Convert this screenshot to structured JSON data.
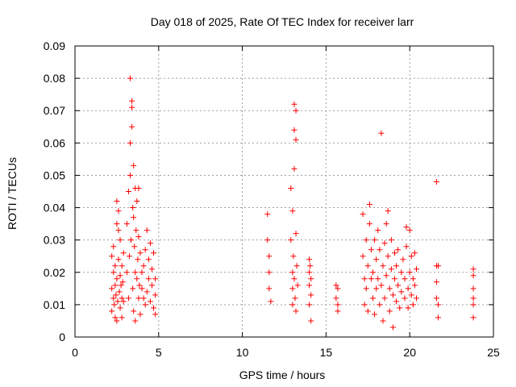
{
  "chart_data": {
    "type": "scatter",
    "title": "Day 018 of 2025, Rate Of TEC Index for receiver larr",
    "xlabel": "GPS time / hours",
    "ylabel": "ROTI / TECUs",
    "xlim": [
      0,
      25
    ],
    "ylim": [
      0,
      0.09
    ],
    "x_ticks": [
      0,
      5,
      10,
      15,
      20,
      25
    ],
    "x_tick_labels": [
      "0",
      "5",
      "10",
      "15",
      "20",
      "25"
    ],
    "y_ticks": [
      0,
      0.01,
      0.02,
      0.03,
      0.04,
      0.05,
      0.06,
      0.07,
      0.08,
      0.09
    ],
    "y_tick_labels": [
      "0",
      "0.01",
      "0.02",
      "0.03",
      "0.04",
      "0.05",
      "0.06",
      "0.07",
      "0.08",
      "0.09"
    ],
    "grid": true,
    "marker": "plus",
    "color": "#ff0000",
    "series": [
      {
        "points": [
          [
            2.2,
            0.015
          ],
          [
            2.2,
            0.025
          ],
          [
            2.2,
            0.008
          ],
          [
            2.3,
            0.012
          ],
          [
            2.3,
            0.02
          ],
          [
            2.3,
            0.028
          ],
          [
            2.35,
            0.01
          ],
          [
            2.4,
            0.016
          ],
          [
            2.4,
            0.022
          ],
          [
            2.4,
            0.006
          ],
          [
            2.45,
            0.013
          ],
          [
            2.5,
            0.018
          ],
          [
            2.5,
            0.035
          ],
          [
            2.5,
            0.042
          ],
          [
            2.5,
            0.005
          ],
          [
            2.55,
            0.011
          ],
          [
            2.6,
            0.024
          ],
          [
            2.6,
            0.033
          ],
          [
            2.6,
            0.039
          ],
          [
            2.65,
            0.014
          ],
          [
            2.7,
            0.009
          ],
          [
            2.7,
            0.019
          ],
          [
            2.7,
            0.03
          ],
          [
            2.75,
            0.016
          ],
          [
            2.8,
            0.012
          ],
          [
            2.8,
            0.022
          ],
          [
            2.8,
            0.006
          ],
          [
            2.85,
            0.017
          ],
          [
            2.9,
            0.011
          ],
          [
            2.9,
            0.026
          ],
          [
            3.1,
            0.02
          ],
          [
            3.1,
            0.035
          ],
          [
            3.2,
            0.012
          ],
          [
            3.2,
            0.045
          ],
          [
            3.25,
            0.025
          ],
          [
            3.3,
            0.05
          ],
          [
            3.3,
            0.08
          ],
          [
            3.3,
            0.06
          ],
          [
            3.35,
            0.03
          ],
          [
            3.4,
            0.073
          ],
          [
            3.4,
            0.071
          ],
          [
            3.4,
            0.065
          ],
          [
            3.45,
            0.04
          ],
          [
            3.45,
            0.015
          ],
          [
            3.5,
            0.053
          ],
          [
            3.5,
            0.037
          ],
          [
            3.5,
            0.008
          ],
          [
            3.55,
            0.028
          ],
          [
            3.6,
            0.02
          ],
          [
            3.6,
            0.046
          ],
          [
            3.6,
            0.005
          ],
          [
            3.65,
            0.033
          ],
          [
            3.7,
            0.018
          ],
          [
            3.7,
            0.042
          ],
          [
            3.75,
            0.024
          ],
          [
            3.8,
            0.012
          ],
          [
            3.8,
            0.031
          ],
          [
            3.8,
            0.046
          ],
          [
            3.85,
            0.016
          ],
          [
            3.9,
            0.026
          ],
          [
            3.9,
            0.007
          ],
          [
            4.0,
            0.02
          ],
          [
            4.0,
            0.015
          ],
          [
            4.1,
            0.012
          ],
          [
            4.1,
            0.022
          ],
          [
            4.2,
            0.01
          ],
          [
            4.2,
            0.027
          ],
          [
            4.3,
            0.014
          ],
          [
            4.3,
            0.033
          ],
          [
            4.4,
            0.018
          ],
          [
            4.4,
            0.024
          ],
          [
            4.5,
            0.011
          ],
          [
            4.5,
            0.029
          ],
          [
            4.6,
            0.016
          ],
          [
            4.6,
            0.021
          ],
          [
            4.7,
            0.009
          ],
          [
            4.7,
            0.026
          ],
          [
            4.8,
            0.013
          ],
          [
            4.8,
            0.018
          ],
          [
            4.8,
            0.007
          ],
          [
            11.5,
            0.038
          ],
          [
            11.5,
            0.03
          ],
          [
            11.6,
            0.025
          ],
          [
            11.6,
            0.02
          ],
          [
            11.6,
            0.015
          ],
          [
            11.7,
            0.011
          ],
          [
            12.9,
            0.046
          ],
          [
            12.9,
            0.03
          ],
          [
            13.0,
            0.02
          ],
          [
            13.0,
            0.015
          ],
          [
            13.0,
            0.01
          ],
          [
            13.0,
            0.039
          ],
          [
            13.05,
            0.025
          ],
          [
            13.1,
            0.052
          ],
          [
            13.1,
            0.072
          ],
          [
            13.1,
            0.064
          ],
          [
            13.1,
            0.018
          ],
          [
            13.15,
            0.012
          ],
          [
            13.2,
            0.07
          ],
          [
            13.2,
            0.061
          ],
          [
            13.2,
            0.032
          ],
          [
            13.2,
            0.008
          ],
          [
            13.25,
            0.022
          ],
          [
            13.3,
            0.016
          ],
          [
            14.0,
            0.024
          ],
          [
            14.0,
            0.02
          ],
          [
            14.0,
            0.016
          ],
          [
            14.0,
            0.01
          ],
          [
            14.05,
            0.022
          ],
          [
            14.1,
            0.018
          ],
          [
            14.1,
            0.013
          ],
          [
            14.1,
            0.005
          ],
          [
            15.6,
            0.016
          ],
          [
            15.6,
            0.012
          ],
          [
            15.7,
            0.015
          ],
          [
            15.7,
            0.01
          ],
          [
            15.7,
            0.008
          ],
          [
            17.2,
            0.038
          ],
          [
            17.2,
            0.025
          ],
          [
            17.3,
            0.018
          ],
          [
            17.3,
            0.01
          ],
          [
            17.4,
            0.03
          ],
          [
            17.4,
            0.015
          ],
          [
            17.5,
            0.022
          ],
          [
            17.5,
            0.008
          ],
          [
            17.6,
            0.035
          ],
          [
            17.6,
            0.041
          ],
          [
            17.7,
            0.018
          ],
          [
            17.7,
            0.027
          ],
          [
            17.8,
            0.012
          ],
          [
            17.8,
            0.02
          ],
          [
            17.9,
            0.03
          ],
          [
            17.9,
            0.007
          ],
          [
            18.0,
            0.015
          ],
          [
            18.0,
            0.024
          ],
          [
            18.1,
            0.018
          ],
          [
            18.1,
            0.033
          ],
          [
            18.2,
            0.01
          ],
          [
            18.2,
            0.027
          ],
          [
            18.3,
            0.063
          ],
          [
            18.3,
            0.016
          ],
          [
            18.4,
            0.022
          ],
          [
            18.4,
            0.005
          ],
          [
            18.5,
            0.029
          ],
          [
            18.5,
            0.012
          ],
          [
            18.6,
            0.035
          ],
          [
            18.6,
            0.019
          ],
          [
            18.7,
            0.025
          ],
          [
            18.7,
            0.039
          ],
          [
            18.8,
            0.008
          ],
          [
            18.8,
            0.015
          ],
          [
            18.9,
            0.03
          ],
          [
            18.9,
            0.021
          ],
          [
            19.0,
            0.003
          ],
          [
            19.0,
            0.013
          ],
          [
            19.1,
            0.026
          ],
          [
            19.1,
            0.018
          ],
          [
            19.2,
            0.011
          ],
          [
            19.2,
            0.022
          ],
          [
            19.3,
            0.016
          ],
          [
            19.3,
            0.027
          ],
          [
            19.4,
            0.009
          ],
          [
            19.5,
            0.02
          ],
          [
            19.5,
            0.014
          ],
          [
            19.6,
            0.024
          ],
          [
            19.7,
            0.012
          ],
          [
            19.7,
            0.018
          ],
          [
            19.8,
            0.034
          ],
          [
            19.8,
            0.028
          ],
          [
            19.9,
            0.015
          ],
          [
            19.9,
            0.009
          ],
          [
            20.0,
            0.033
          ],
          [
            20.0,
            0.02
          ],
          [
            20.1,
            0.013
          ],
          [
            20.1,
            0.025
          ],
          [
            20.2,
            0.018
          ],
          [
            20.2,
            0.01
          ],
          [
            20.3,
            0.026
          ],
          [
            20.3,
            0.016
          ],
          [
            20.4,
            0.021
          ],
          [
            20.4,
            0.012
          ],
          [
            21.6,
            0.048
          ],
          [
            21.6,
            0.022
          ],
          [
            21.6,
            0.017
          ],
          [
            21.6,
            0.012
          ],
          [
            21.7,
            0.022
          ],
          [
            21.7,
            0.01
          ],
          [
            21.7,
            0.006
          ],
          [
            23.8,
            0.021
          ],
          [
            23.8,
            0.019
          ],
          [
            23.8,
            0.015
          ],
          [
            23.8,
            0.012
          ],
          [
            23.8,
            0.01
          ],
          [
            23.8,
            0.006
          ]
        ]
      }
    ]
  }
}
